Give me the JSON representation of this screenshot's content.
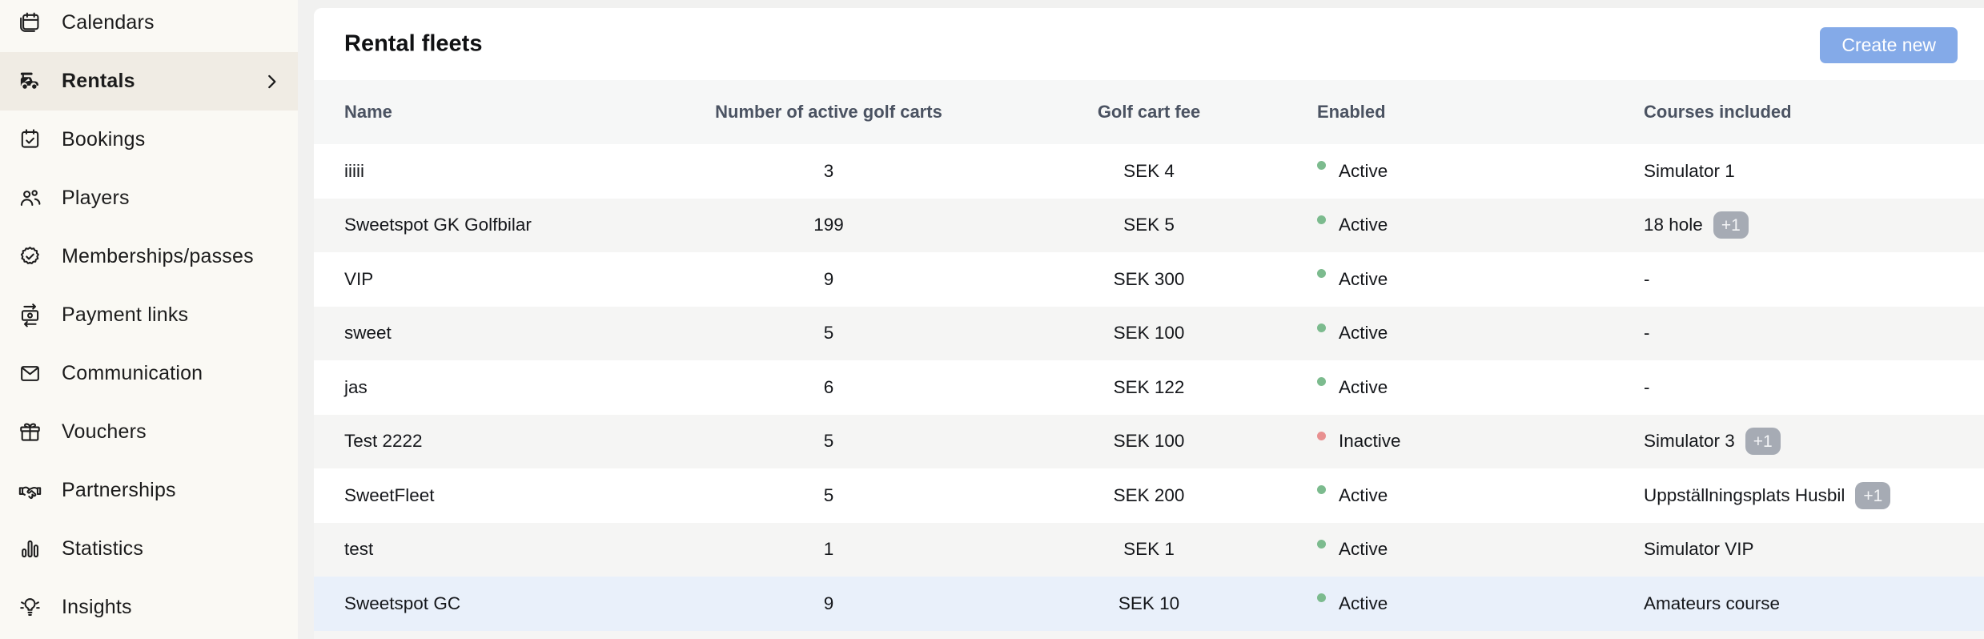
{
  "sidebar": {
    "items": [
      {
        "label": "Calendars",
        "icon": "calendar-icon",
        "selected": false,
        "has_chevron": false
      },
      {
        "label": "Rentals",
        "icon": "golf-cart-icon",
        "selected": true,
        "has_chevron": true
      },
      {
        "label": "Bookings",
        "icon": "calendar-check-icon",
        "selected": false,
        "has_chevron": false
      },
      {
        "label": "Players",
        "icon": "players-icon",
        "selected": false,
        "has_chevron": false
      },
      {
        "label": "Memberships/passes",
        "icon": "badge-check-icon",
        "selected": false,
        "has_chevron": false
      },
      {
        "label": "Payment links",
        "icon": "payment-icon",
        "selected": false,
        "has_chevron": false
      },
      {
        "label": "Communication",
        "icon": "envelope-icon",
        "selected": false,
        "has_chevron": false
      },
      {
        "label": "Vouchers",
        "icon": "gift-icon",
        "selected": false,
        "has_chevron": false
      },
      {
        "label": "Partnerships",
        "icon": "handshake-icon",
        "selected": false,
        "has_chevron": false
      },
      {
        "label": "Statistics",
        "icon": "bar-chart-icon",
        "selected": false,
        "has_chevron": false
      },
      {
        "label": "Insights",
        "icon": "lightbulb-icon",
        "selected": false,
        "has_chevron": false
      }
    ]
  },
  "header": {
    "title": "Rental fleets",
    "create_button_label": "Create new"
  },
  "table": {
    "columns": [
      "Name",
      "Number of active golf carts",
      "Golf cart fee",
      "Enabled",
      "Courses included"
    ],
    "rows": [
      {
        "name": "iiiii",
        "active_carts": "3",
        "fee": "SEK 4",
        "status": "Active",
        "courses": "Simulator 1",
        "extra_badge": null,
        "highlighted": false
      },
      {
        "name": "Sweetspot GK Golfbilar",
        "active_carts": "199",
        "fee": "SEK 5",
        "status": "Active",
        "courses": "18 hole",
        "extra_badge": "+1",
        "highlighted": false
      },
      {
        "name": "VIP",
        "active_carts": "9",
        "fee": "SEK 300",
        "status": "Active",
        "courses": "-",
        "extra_badge": null,
        "highlighted": false
      },
      {
        "name": "sweet",
        "active_carts": "5",
        "fee": "SEK 100",
        "status": "Active",
        "courses": "-",
        "extra_badge": null,
        "highlighted": false
      },
      {
        "name": "jas",
        "active_carts": "6",
        "fee": "SEK 122",
        "status": "Active",
        "courses": "-",
        "extra_badge": null,
        "highlighted": false
      },
      {
        "name": "Test 2222",
        "active_carts": "5",
        "fee": "SEK 100",
        "status": "Inactive",
        "courses": "Simulator 3",
        "extra_badge": "+1",
        "highlighted": false
      },
      {
        "name": "SweetFleet",
        "active_carts": "5",
        "fee": "SEK 200",
        "status": "Active",
        "courses": "Uppställningsplats Husbil",
        "extra_badge": "+1",
        "highlighted": false
      },
      {
        "name": "test",
        "active_carts": "1",
        "fee": "SEK 1",
        "status": "Active",
        "courses": "Simulator VIP",
        "extra_badge": null,
        "highlighted": false
      },
      {
        "name": "Sweetspot GC",
        "active_carts": "9",
        "fee": "SEK 10",
        "status": "Active",
        "courses": "Amateurs course",
        "extra_badge": null,
        "highlighted": true
      }
    ]
  },
  "colors": {
    "accent_button": "#84AAE8",
    "active_status": "#7CBB8E",
    "inactive_status": "#E89090",
    "sidebar_bg": "#FAF9F4",
    "selected_nav_bg": "#F0ECE4",
    "highlighted_row_bg": "#E9F0FA"
  }
}
